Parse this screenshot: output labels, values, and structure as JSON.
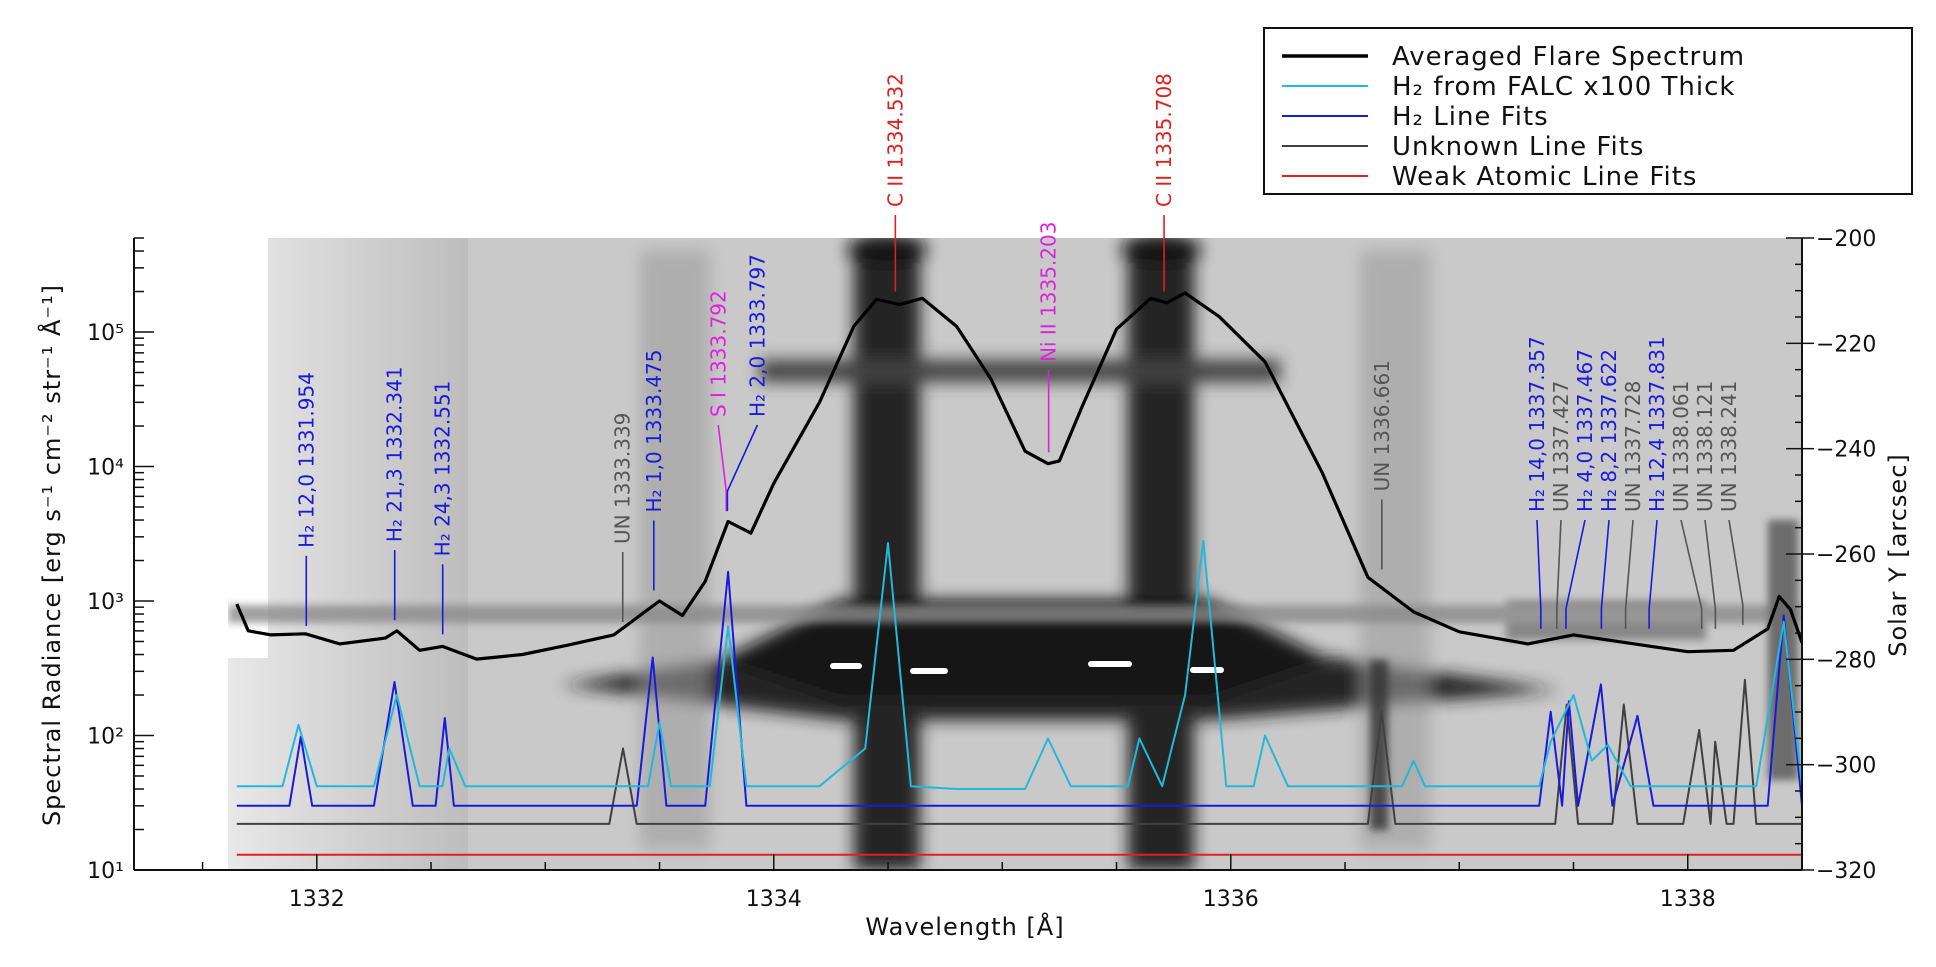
{
  "chart_data": {
    "type": "line",
    "xlabel": "Wavelength [Å]",
    "ylabel_left": "Spectral Radiance [erg s⁻¹ cm⁻² str⁻¹ Å⁻¹]",
    "ylabel_right": "Solar Y [arcsec]",
    "xlim": [
      1331.2,
      1338.5
    ],
    "ylim": [
      10,
      500000
    ],
    "yscale": "log",
    "y2lim": [
      -320,
      -200
    ],
    "x_ticks": [
      1332,
      1334,
      1336,
      1338
    ],
    "y_ticks": [
      {
        "v": 10,
        "label": "10¹"
      },
      {
        "v": 100,
        "label": "10²"
      },
      {
        "v": 1000,
        "label": "10³"
      },
      {
        "v": 10000,
        "label": "10⁴"
      },
      {
        "v": 100000,
        "label": "10⁵"
      }
    ],
    "y2_ticks": [
      -200,
      -220,
      -240,
      -260,
      -280,
      -300,
      -320
    ],
    "background": "IRIS slit spectrogram (inverted grayscale)",
    "legend": {
      "position": "top-right",
      "entries": [
        {
          "label": "Averaged Flare Spectrum",
          "color": "#000000"
        },
        {
          "label": "H₂ from FALC x100 Thick",
          "color": "#22b8dc"
        },
        {
          "label": "H₂ Line Fits",
          "color": "#1a1adc"
        },
        {
          "label": "Unknown Line Fits",
          "color": "#404040"
        },
        {
          "label": "Weak Atomic Line Fits",
          "color": "#e0201e"
        }
      ]
    },
    "series": [
      {
        "name": "Averaged Flare Spectrum",
        "color": "#000000",
        "points": [
          [
            1331.65,
            950
          ],
          [
            1331.7,
            600
          ],
          [
            1331.8,
            560
          ],
          [
            1331.95,
            570
          ],
          [
            1332.1,
            480
          ],
          [
            1332.3,
            530
          ],
          [
            1332.35,
            600
          ],
          [
            1332.45,
            430
          ],
          [
            1332.55,
            460
          ],
          [
            1332.7,
            370
          ],
          [
            1332.9,
            400
          ],
          [
            1333.1,
            470
          ],
          [
            1333.3,
            560
          ],
          [
            1333.5,
            1000
          ],
          [
            1333.6,
            780
          ],
          [
            1333.7,
            1400
          ],
          [
            1333.8,
            3900
          ],
          [
            1333.9,
            3200
          ],
          [
            1334.0,
            7500
          ],
          [
            1334.2,
            30000
          ],
          [
            1334.35,
            110000
          ],
          [
            1334.45,
            175000
          ],
          [
            1334.55,
            160000
          ],
          [
            1334.65,
            178000
          ],
          [
            1334.8,
            110000
          ],
          [
            1334.95,
            45000
          ],
          [
            1335.1,
            13000
          ],
          [
            1335.2,
            10500
          ],
          [
            1335.25,
            11000
          ],
          [
            1335.35,
            28000
          ],
          [
            1335.5,
            105000
          ],
          [
            1335.65,
            178000
          ],
          [
            1335.72,
            165000
          ],
          [
            1335.8,
            195000
          ],
          [
            1335.95,
            130000
          ],
          [
            1336.15,
            60000
          ],
          [
            1336.4,
            9000
          ],
          [
            1336.6,
            1500
          ],
          [
            1336.8,
            830
          ],
          [
            1337.0,
            590
          ],
          [
            1337.3,
            480
          ],
          [
            1337.5,
            560
          ],
          [
            1337.8,
            470
          ],
          [
            1338.0,
            420
          ],
          [
            1338.2,
            430
          ],
          [
            1338.35,
            620
          ],
          [
            1338.4,
            1080
          ],
          [
            1338.45,
            860
          ],
          [
            1338.5,
            490
          ]
        ]
      },
      {
        "name": "H₂ from FALC x100 Thick",
        "color": "#22b8dc",
        "points": [
          [
            1331.65,
            42
          ],
          [
            1331.85,
            42
          ],
          [
            1331.92,
            120
          ],
          [
            1332.0,
            42
          ],
          [
            1332.25,
            42
          ],
          [
            1332.35,
            200
          ],
          [
            1332.45,
            42
          ],
          [
            1332.55,
            42
          ],
          [
            1332.58,
            80
          ],
          [
            1332.65,
            42
          ],
          [
            1333.3,
            42
          ],
          [
            1333.45,
            42
          ],
          [
            1333.5,
            125
          ],
          [
            1333.55,
            42
          ],
          [
            1333.72,
            42
          ],
          [
            1333.8,
            650
          ],
          [
            1333.88,
            42
          ],
          [
            1334.2,
            42
          ],
          [
            1334.4,
            80
          ],
          [
            1334.5,
            2700
          ],
          [
            1334.6,
            42
          ],
          [
            1334.8,
            40
          ],
          [
            1335.1,
            40
          ],
          [
            1335.2,
            95
          ],
          [
            1335.3,
            42
          ],
          [
            1335.55,
            42
          ],
          [
            1335.6,
            95
          ],
          [
            1335.7,
            42
          ],
          [
            1335.8,
            200
          ],
          [
            1335.88,
            2800
          ],
          [
            1335.98,
            42
          ],
          [
            1336.1,
            42
          ],
          [
            1336.15,
            100
          ],
          [
            1336.25,
            42
          ],
          [
            1336.75,
            42
          ],
          [
            1336.8,
            65
          ],
          [
            1336.85,
            42
          ],
          [
            1337.35,
            42
          ],
          [
            1337.4,
            90
          ],
          [
            1337.5,
            200
          ],
          [
            1337.58,
            65
          ],
          [
            1337.65,
            85
          ],
          [
            1337.75,
            42
          ],
          [
            1338.3,
            42
          ],
          [
            1338.42,
            700
          ],
          [
            1338.5,
            42
          ]
        ]
      },
      {
        "name": "H₂ Line Fits",
        "color": "#1a1adc",
        "points": [
          [
            1331.65,
            30
          ],
          [
            1331.88,
            30
          ],
          [
            1331.93,
            98
          ],
          [
            1331.98,
            30
          ],
          [
            1332.25,
            30
          ],
          [
            1332.34,
            250
          ],
          [
            1332.42,
            30
          ],
          [
            1332.52,
            30
          ],
          [
            1332.56,
            135
          ],
          [
            1332.6,
            30
          ],
          [
            1333.4,
            30
          ],
          [
            1333.47,
            380
          ],
          [
            1333.53,
            30
          ],
          [
            1333.7,
            30
          ],
          [
            1333.8,
            1650
          ],
          [
            1333.88,
            30
          ],
          [
            1337.35,
            30
          ],
          [
            1337.4,
            150
          ],
          [
            1337.45,
            30
          ],
          [
            1337.48,
            180
          ],
          [
            1337.52,
            30
          ],
          [
            1337.62,
            240
          ],
          [
            1337.67,
            30
          ],
          [
            1337.78,
            140
          ],
          [
            1337.85,
            30
          ],
          [
            1338.35,
            30
          ],
          [
            1338.42,
            780
          ],
          [
            1338.5,
            30
          ]
        ]
      },
      {
        "name": "Unknown Line Fits",
        "color": "#404040",
        "points": [
          [
            1331.65,
            22
          ],
          [
            1333.28,
            22
          ],
          [
            1333.34,
            80
          ],
          [
            1333.4,
            22
          ],
          [
            1336.6,
            22
          ],
          [
            1336.66,
            150
          ],
          [
            1336.72,
            22
          ],
          [
            1337.42,
            22
          ],
          [
            1337.47,
            170
          ],
          [
            1337.52,
            22
          ],
          [
            1337.67,
            22
          ],
          [
            1337.72,
            170
          ],
          [
            1337.78,
            22
          ],
          [
            1337.98,
            22
          ],
          [
            1338.05,
            110
          ],
          [
            1338.1,
            22
          ],
          [
            1338.12,
            90
          ],
          [
            1338.17,
            22
          ],
          [
            1338.2,
            22
          ],
          [
            1338.25,
            260
          ],
          [
            1338.3,
            22
          ],
          [
            1338.5,
            22
          ]
        ]
      },
      {
        "name": "Weak Atomic Line Fits",
        "color": "#e0201e",
        "points": [
          [
            1331.65,
            13
          ],
          [
            1338.5,
            13
          ]
        ]
      }
    ],
    "annotations": [
      {
        "text": "H₂ 12,0 1331.954",
        "x": 1331.954,
        "y": 590,
        "color": "#1a1adc"
      },
      {
        "text": "H₂ 21,3 1332.341",
        "x": 1332.341,
        "y": 650,
        "color": "#1a1adc"
      },
      {
        "text": "H₂ 24,3 1332.551",
        "x": 1332.551,
        "y": 510,
        "color": "#1a1adc"
      },
      {
        "text": "UN 1333.339",
        "x": 1333.339,
        "y": 630,
        "color": "#555555"
      },
      {
        "text": "H₂ 1,0 1333.475",
        "x": 1333.475,
        "y": 1080,
        "color": "#1a1adc"
      },
      {
        "text": "S I 1333.792",
        "x": 1333.792,
        "y": 4200,
        "color": "#e020e0"
      },
      {
        "text": "H₂ 2,0 1333.797",
        "x": 1333.797,
        "y": 4200,
        "color": "#1a1adc"
      },
      {
        "text": "C II 1334.532",
        "x": 1334.532,
        "y": 180000,
        "color": "#e0201e"
      },
      {
        "text": "Ni II 1335.203",
        "x": 1335.203,
        "y": 11500,
        "color": "#e020e0"
      },
      {
        "text": "C II 1335.708",
        "x": 1335.708,
        "y": 180000,
        "color": "#e0201e"
      },
      {
        "text": "UN 1336.661",
        "x": 1336.661,
        "y": 1550,
        "color": "#555555"
      },
      {
        "text": "H₂ 14,0 1337.357",
        "x": 1337.357,
        "y": 560,
        "color": "#1a1adc"
      },
      {
        "text": "UN 1337.427",
        "x": 1337.427,
        "y": 560,
        "color": "#555555"
      },
      {
        "text": "H₂ 4,0 1337.467",
        "x": 1337.467,
        "y": 560,
        "color": "#1a1adc"
      },
      {
        "text": "H₂ 8,2 1337.622",
        "x": 1337.622,
        "y": 560,
        "color": "#1a1adc"
      },
      {
        "text": "UN 1337.728",
        "x": 1337.728,
        "y": 560,
        "color": "#555555"
      },
      {
        "text": "H₂ 12,4 1337.831",
        "x": 1337.831,
        "y": 560,
        "color": "#1a1adc"
      },
      {
        "text": "UN 1338.061",
        "x": 1338.061,
        "y": 560,
        "color": "#555555"
      },
      {
        "text": "UN 1338.121",
        "x": 1338.121,
        "y": 560,
        "color": "#555555"
      },
      {
        "text": "UN 1338.241",
        "x": 1338.241,
        "y": 600,
        "color": "#555555"
      }
    ]
  }
}
